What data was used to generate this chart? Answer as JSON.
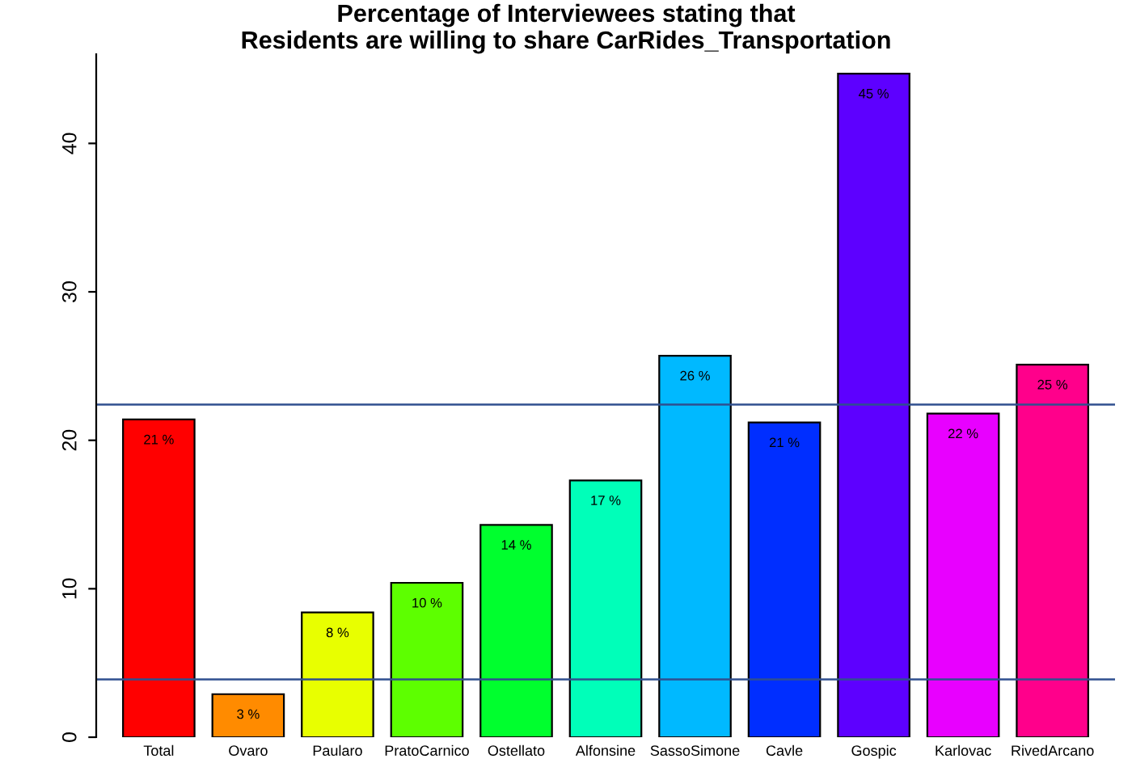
{
  "chart_data": {
    "type": "bar",
    "title": "Percentage of Interviewees stating that\nResidents are willing to share CarRides_Transportation",
    "categories": [
      "Total",
      "Ovaro",
      "Paularo",
      "PratoCarnico",
      "Ostellato",
      "Alfonsine",
      "SassoSimone",
      "Cavle",
      "Gospic",
      "Karlovac",
      "RivedArcano"
    ],
    "values": [
      21.4,
      2.9,
      8.4,
      10.4,
      14.3,
      17.3,
      25.7,
      21.2,
      44.7,
      21.8,
      25.1
    ],
    "value_labels": [
      "21 %",
      "3 %",
      "8 %",
      "10 %",
      "14 %",
      "17 %",
      "26 %",
      "21 %",
      "45 %",
      "22 %",
      "25 %"
    ],
    "colors": [
      "#ff0000",
      "#ff8b00",
      "#e8ff00",
      "#5dff00",
      "#00ff2e",
      "#00ffb9",
      "#00b9ff",
      "#002eff",
      "#5d00ff",
      "#e800ff",
      "#ff008b"
    ],
    "ylim": [
      0,
      46
    ],
    "yticks": [
      0,
      10,
      20,
      30,
      40
    ],
    "grid": false,
    "legend": false,
    "ref_lines": [
      {
        "axis": "y",
        "value": 22.4,
        "color": "#2f4f8f"
      },
      {
        "axis": "y",
        "value": 3.9,
        "color": "#2f4f8f"
      }
    ]
  }
}
